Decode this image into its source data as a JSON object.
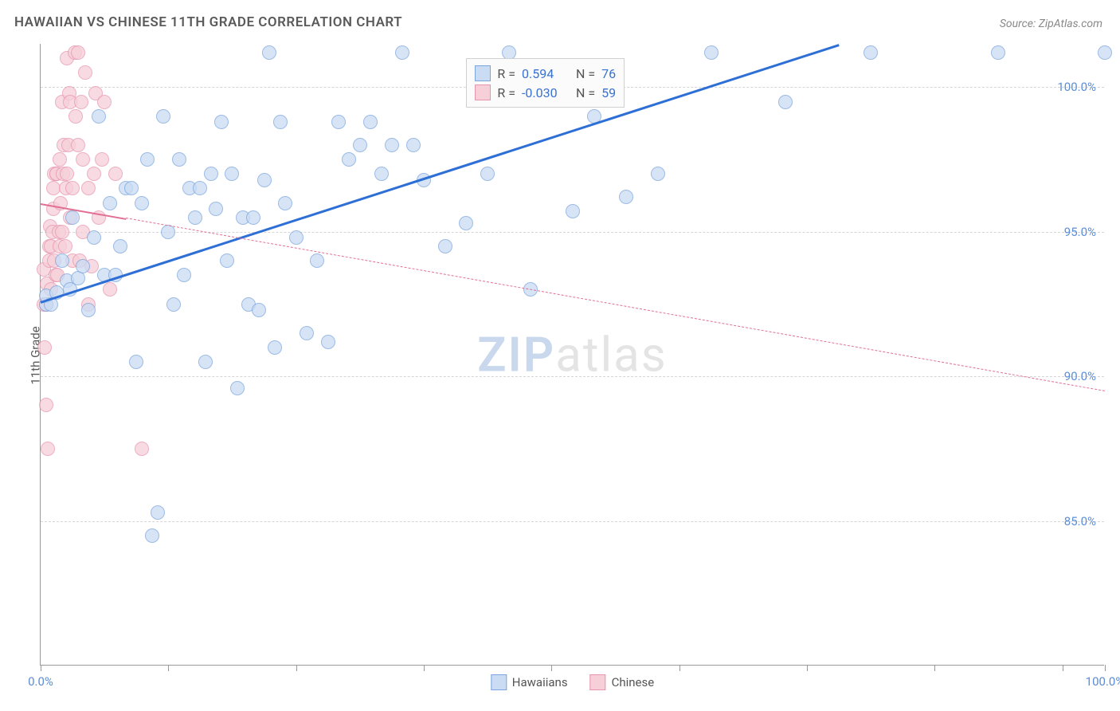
{
  "title": "HAWAIIAN VS CHINESE 11TH GRADE CORRELATION CHART",
  "source": "Source: ZipAtlas.com",
  "ylabel": "11th Grade",
  "watermark": {
    "left": "ZIP",
    "right": "atlas"
  },
  "chart": {
    "type": "scatter",
    "xlim": [
      0,
      100
    ],
    "ylim": [
      80,
      101.5
    ],
    "xtick_positions": [
      0,
      12,
      24,
      36,
      48,
      60,
      72,
      84,
      96,
      100
    ],
    "xtick_labels_shown": {
      "0": "0.0%",
      "100": "100.0%"
    },
    "ytick_positions": [
      85,
      90,
      95,
      100
    ],
    "ytick_labels": [
      "85.0%",
      "90.0%",
      "95.0%",
      "100.0%"
    ],
    "grid_color": "#d5d5d5",
    "axis_color": "#999999",
    "background_color": "#ffffff",
    "tick_label_color": "#5b8dd6",
    "tick_fontsize": 15,
    "title_color": "#5a5a5a",
    "title_fontsize": 17,
    "marker_radius": 9,
    "marker_opacity": 0.75
  },
  "series": {
    "hawaiians": {
      "label": "Hawaiians",
      "fill": "#c9dcf4",
      "stroke": "#7ba5dc",
      "trend_color": "#2e6fd6",
      "trend_width": 3.5,
      "trend_dash": "solid",
      "trend": {
        "x1": 0,
        "y1": 92.6,
        "x2": 75,
        "y2": 101.5
      },
      "R": "0.594",
      "N": "76",
      "points": [
        [
          0.5,
          92.5
        ],
        [
          0.5,
          92.8
        ],
        [
          1,
          92.5
        ],
        [
          1.5,
          92.9
        ],
        [
          2,
          94.0
        ],
        [
          2.5,
          93.3
        ],
        [
          2.8,
          93.0
        ],
        [
          3,
          95.5
        ],
        [
          3.5,
          93.4
        ],
        [
          4,
          93.8
        ],
        [
          4.5,
          92.3
        ],
        [
          5,
          94.8
        ],
        [
          5.5,
          99.0
        ],
        [
          6,
          93.5
        ],
        [
          6.5,
          96.0
        ],
        [
          7,
          93.5
        ],
        [
          7.5,
          94.5
        ],
        [
          8,
          96.5
        ],
        [
          8.5,
          96.5
        ],
        [
          9,
          90.5
        ],
        [
          9.5,
          96.0
        ],
        [
          10,
          97.5
        ],
        [
          10.5,
          84.5
        ],
        [
          11,
          85.3
        ],
        [
          11.5,
          99.0
        ],
        [
          12,
          95.0
        ],
        [
          12.5,
          92.5
        ],
        [
          13,
          97.5
        ],
        [
          13.5,
          93.5
        ],
        [
          14,
          96.5
        ],
        [
          14.5,
          95.5
        ],
        [
          15,
          96.5
        ],
        [
          15.5,
          90.5
        ],
        [
          16,
          97.0
        ],
        [
          16.5,
          95.8
        ],
        [
          17,
          98.8
        ],
        [
          17.5,
          94.0
        ],
        [
          18,
          97.0
        ],
        [
          18.5,
          89.6
        ],
        [
          19,
          95.5
        ],
        [
          19.5,
          92.5
        ],
        [
          20,
          95.5
        ],
        [
          20.5,
          92.3
        ],
        [
          21,
          96.8
        ],
        [
          21.5,
          101.2
        ],
        [
          22,
          91.0
        ],
        [
          22.5,
          98.8
        ],
        [
          23,
          96.0
        ],
        [
          24,
          94.8
        ],
        [
          25,
          91.5
        ],
        [
          26,
          94.0
        ],
        [
          27,
          91.2
        ],
        [
          28,
          98.8
        ],
        [
          29,
          97.5
        ],
        [
          30,
          98.0
        ],
        [
          31,
          98.8
        ],
        [
          32,
          97.0
        ],
        [
          33,
          98.0
        ],
        [
          34,
          101.2
        ],
        [
          35,
          98.0
        ],
        [
          36,
          96.8
        ],
        [
          38,
          94.5
        ],
        [
          40,
          95.3
        ],
        [
          42,
          97.0
        ],
        [
          44,
          101.2
        ],
        [
          46,
          93.0
        ],
        [
          48,
          100.0
        ],
        [
          50,
          95.7
        ],
        [
          52,
          99.0
        ],
        [
          55,
          96.2
        ],
        [
          58,
          97.0
        ],
        [
          63,
          101.2
        ],
        [
          70,
          99.5
        ],
        [
          78,
          101.2
        ],
        [
          90,
          101.2
        ],
        [
          100,
          101.2
        ]
      ]
    },
    "chinese": {
      "label": "Chinese",
      "fill": "#f6cfd9",
      "stroke": "#e795ad",
      "trend_color": "#e26f93",
      "trend_width": 2,
      "trend_dash": "dashed",
      "trend": {
        "x1": 0,
        "y1": 96.0,
        "x2": 100,
        "y2": 89.5
      },
      "trend_solid_until_x": 8,
      "R": "-0.030",
      "N": "59",
      "points": [
        [
          0.3,
          92.5
        ],
        [
          0.3,
          93.7
        ],
        [
          0.4,
          91.0
        ],
        [
          0.5,
          89.0
        ],
        [
          0.5,
          92.5
        ],
        [
          0.6,
          93.2
        ],
        [
          0.7,
          87.5
        ],
        [
          0.8,
          94.0
        ],
        [
          0.8,
          94.5
        ],
        [
          0.9,
          95.2
        ],
        [
          1.0,
          93.0
        ],
        [
          1.0,
          94.5
        ],
        [
          1.1,
          95.0
        ],
        [
          1.2,
          95.8
        ],
        [
          1.2,
          96.5
        ],
        [
          1.3,
          94.0
        ],
        [
          1.3,
          97.0
        ],
        [
          1.4,
          93.5
        ],
        [
          1.5,
          97.0
        ],
        [
          1.5,
          97.0
        ],
        [
          1.6,
          93.5
        ],
        [
          1.7,
          95.0
        ],
        [
          1.8,
          94.5
        ],
        [
          1.8,
          97.5
        ],
        [
          1.9,
          96.0
        ],
        [
          2.0,
          95.0
        ],
        [
          2.0,
          99.5
        ],
        [
          2.1,
          97.0
        ],
        [
          2.2,
          98.0
        ],
        [
          2.3,
          94.5
        ],
        [
          2.4,
          96.5
        ],
        [
          2.5,
          97.0
        ],
        [
          2.5,
          101.0
        ],
        [
          2.6,
          98.0
        ],
        [
          2.7,
          99.8
        ],
        [
          2.8,
          95.5
        ],
        [
          2.8,
          99.5
        ],
        [
          3.0,
          94.0
        ],
        [
          3.0,
          96.5
        ],
        [
          3.2,
          101.2
        ],
        [
          3.3,
          99.0
        ],
        [
          3.5,
          98.0
        ],
        [
          3.5,
          101.2
        ],
        [
          3.7,
          94.0
        ],
        [
          3.8,
          99.5
        ],
        [
          4.0,
          95.0
        ],
        [
          4.0,
          97.5
        ],
        [
          4.2,
          100.5
        ],
        [
          4.5,
          92.5
        ],
        [
          4.5,
          96.5
        ],
        [
          4.8,
          93.8
        ],
        [
          5.0,
          97.0
        ],
        [
          5.2,
          99.8
        ],
        [
          5.5,
          95.5
        ],
        [
          5.8,
          97.5
        ],
        [
          6.0,
          99.5
        ],
        [
          6.5,
          93.0
        ],
        [
          7.0,
          97.0
        ],
        [
          9.5,
          87.5
        ]
      ]
    }
  },
  "rbox": {
    "left_pct": 40,
    "top_y": 101.0,
    "r_label": "R =",
    "n_label": "N ="
  },
  "legend_bottom": [
    "hawaiians",
    "chinese"
  ]
}
